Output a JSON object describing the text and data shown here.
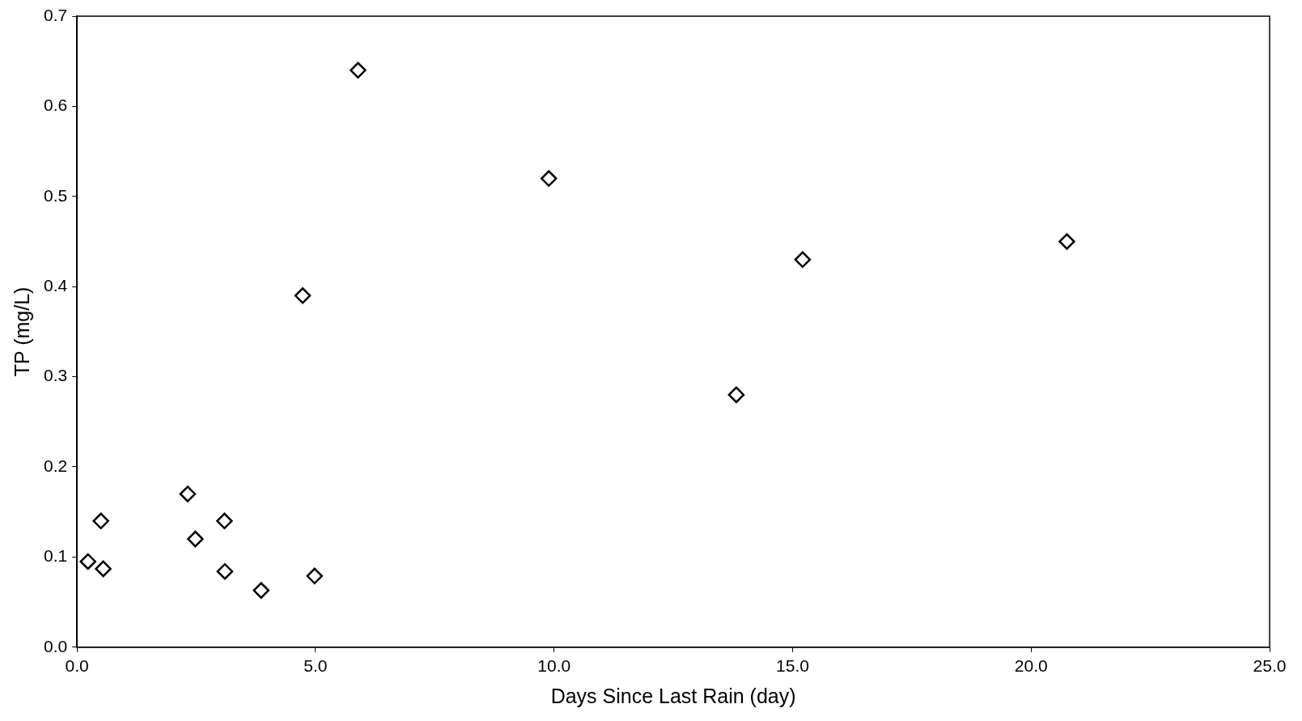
{
  "chart_data": {
    "type": "scatter",
    "xlabel": "Days Since Last Rain (day)",
    "ylabel": "TP (mg/L)",
    "x": [
      0.23,
      0.5,
      0.55,
      2.32,
      2.48,
      3.09,
      3.1,
      3.86,
      4.73,
      4.98,
      5.89,
      9.89,
      13.82,
      15.21,
      20.75
    ],
    "values": [
      0.095,
      0.14,
      0.087,
      0.17,
      0.12,
      0.14,
      0.084,
      0.063,
      0.39,
      0.079,
      0.64,
      0.52,
      0.28,
      0.43,
      0.45
    ],
    "color": "#000000",
    "marker": "diamond",
    "grid": false,
    "legend": false,
    "xlim": [
      0,
      25
    ],
    "xticks": [
      {
        "value": 0,
        "label": "0.0"
      },
      {
        "value": 5,
        "label": "5.0"
      },
      {
        "value": 10,
        "label": "10.0"
      },
      {
        "value": 15,
        "label": "15.0"
      },
      {
        "value": 20,
        "label": "20.0"
      },
      {
        "value": 25,
        "label": "25.0"
      }
    ],
    "ylim": [
      0,
      0.7
    ],
    "yticks": [
      {
        "value": 0,
        "label": "0.0"
      },
      {
        "value": 0.1,
        "label": "0.1"
      },
      {
        "value": 0.2,
        "label": "0.2"
      },
      {
        "value": 0.3,
        "label": "0.3"
      },
      {
        "value": 0.4,
        "label": "0.4"
      },
      {
        "value": 0.5,
        "label": "0.5"
      },
      {
        "value": 0.6,
        "label": "0.6"
      },
      {
        "value": 0.7,
        "label": "0.7"
      }
    ]
  }
}
